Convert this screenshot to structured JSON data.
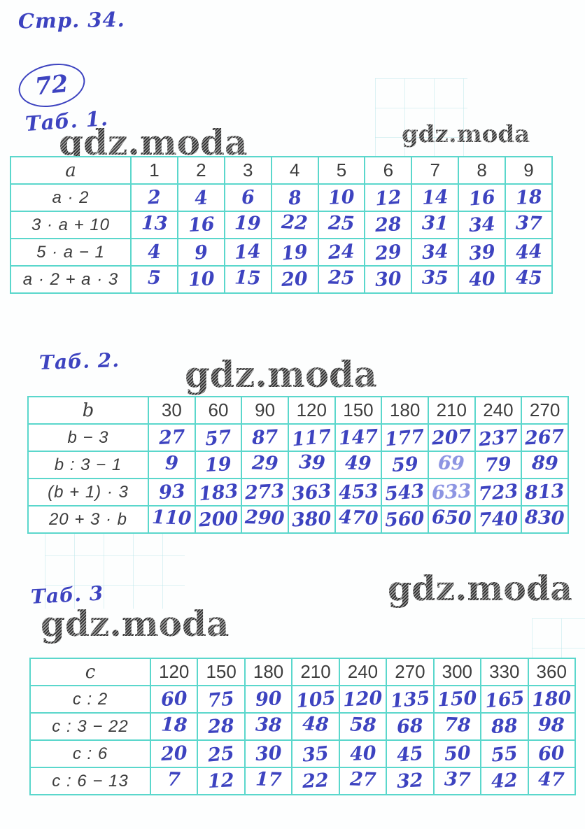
{
  "page": {
    "note": "Стр. 34.",
    "task_number": "72",
    "watermark_text": "gdz.moda",
    "colors": {
      "ink": "#3d43c0",
      "ink_corrected": "#8d95e2",
      "table_grid": "#5bd7cc",
      "printed_text": "#3d3d3d",
      "watermark": "#4a4a4a",
      "paper": "#fdfefe"
    }
  },
  "tables": [
    {
      "caption": "Таб. 1.",
      "variable": "a",
      "header_values": [
        "1",
        "2",
        "3",
        "4",
        "5",
        "6",
        "7",
        "8",
        "9"
      ],
      "rows": [
        {
          "label": "a · 2",
          "values": [
            "2",
            "4",
            "6",
            "8",
            "10",
            "12",
            "14",
            "16",
            "18"
          ]
        },
        {
          "label": "3 · a + 10",
          "values": [
            "13",
            "16",
            "19",
            "22",
            "25",
            "28",
            "31",
            "34",
            "37"
          ]
        },
        {
          "label": "5 · a − 1",
          "values": [
            "4",
            "9",
            "14",
            "19",
            "24",
            "29",
            "34",
            "39",
            "44"
          ]
        },
        {
          "label": "a · 2 + a · 3",
          "values": [
            "5",
            "10",
            "15",
            "20",
            "25",
            "30",
            "35",
            "40",
            "45"
          ]
        }
      ]
    },
    {
      "caption": "Таб. 2.",
      "variable": "b",
      "header_values": [
        "30",
        "60",
        "90",
        "120",
        "150",
        "180",
        "210",
        "240",
        "270"
      ],
      "rows": [
        {
          "label": "b − 3",
          "values": [
            "27",
            "57",
            "87",
            "117",
            "147",
            "177",
            "207",
            "237",
            "267"
          ]
        },
        {
          "label": "b : 3 − 1",
          "values": [
            "9",
            "19",
            "29",
            "39",
            "49",
            "59",
            "69",
            "79",
            "89"
          ]
        },
        {
          "label": "(b + 1) · 3",
          "values": [
            "93",
            "183",
            "273",
            "363",
            "453",
            "543",
            "633",
            "723",
            "813"
          ]
        },
        {
          "label": "20 + 3 · b",
          "values": [
            "110",
            "200",
            "290",
            "380",
            "470",
            "560",
            "650",
            "740",
            "830"
          ]
        }
      ]
    },
    {
      "caption": "Таб. 3",
      "variable": "c",
      "header_values": [
        "120",
        "150",
        "180",
        "210",
        "240",
        "270",
        "300",
        "330",
        "360"
      ],
      "rows": [
        {
          "label": "c : 2",
          "values": [
            "60",
            "75",
            "90",
            "105",
            "120",
            "135",
            "150",
            "165",
            "180"
          ]
        },
        {
          "label": "c : 3 − 22",
          "values": [
            "18",
            "28",
            "38",
            "48",
            "58",
            "68",
            "78",
            "88",
            "98"
          ]
        },
        {
          "label": "c : 6",
          "values": [
            "20",
            "25",
            "30",
            "35",
            "40",
            "45",
            "50",
            "55",
            "60"
          ]
        },
        {
          "label": "c : 6 − 13",
          "values": [
            "7",
            "12",
            "17",
            "22",
            "27",
            "32",
            "37",
            "42",
            "47"
          ]
        }
      ]
    }
  ],
  "corrected_cells": [
    {
      "table": 1,
      "row": 1,
      "col": 6
    },
    {
      "table": 1,
      "row": 2,
      "col": 6
    }
  ]
}
